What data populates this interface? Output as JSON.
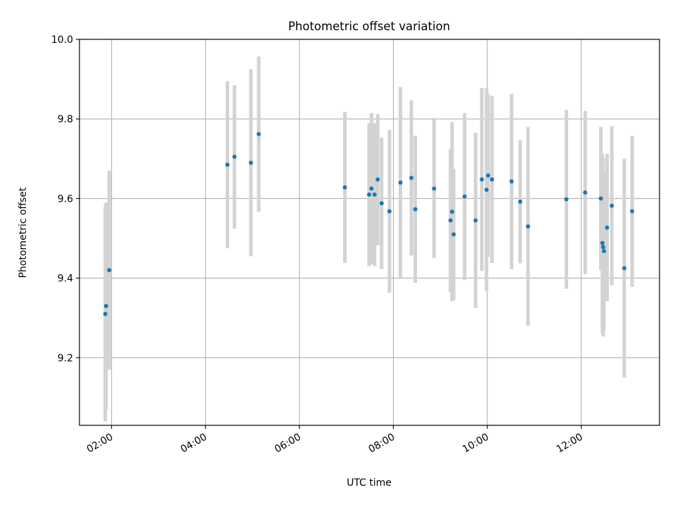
{
  "chart_data": {
    "type": "scatter",
    "title": "Photometric offset variation",
    "xlabel": "UTC time",
    "ylabel": "Photometric offset",
    "x_is_time": true,
    "xlim": [
      "01:19",
      "13:40"
    ],
    "ylim": [
      9.03,
      10.0
    ],
    "x_ticks": [
      "02:00",
      "04:00",
      "06:00",
      "08:00",
      "10:00",
      "12:00"
    ],
    "y_ticks": [
      "9.2",
      "9.4",
      "9.6",
      "9.8",
      "10.0"
    ],
    "grid": true,
    "legend": "none",
    "colors": {
      "point": "#1f77b4",
      "errorbar": "#d3d3d3",
      "grid": "#b0b0b0",
      "axes": "#000000"
    },
    "series": [
      {
        "points": [
          {
            "x": "01:53",
            "y": 9.33,
            "err": 0.26
          },
          {
            "x": "01:52",
            "y": 9.31,
            "err": 0.27
          },
          {
            "x": "01:57",
            "y": 9.42,
            "err": 0.25
          },
          {
            "x": "04:28",
            "y": 9.685,
            "err": 0.21
          },
          {
            "x": "04:37",
            "y": 9.705,
            "err": 0.18
          },
          {
            "x": "04:58",
            "y": 9.69,
            "err": 0.235
          },
          {
            "x": "05:08",
            "y": 9.762,
            "err": 0.195
          },
          {
            "x": "06:58",
            "y": 9.628,
            "err": 0.19
          },
          {
            "x": "07:29",
            "y": 9.61,
            "err": 0.18
          },
          {
            "x": "07:32",
            "y": 9.625,
            "err": 0.19
          },
          {
            "x": "07:36",
            "y": 9.61,
            "err": 0.18
          },
          {
            "x": "07:40",
            "y": 9.648,
            "err": 0.165
          },
          {
            "x": "07:45",
            "y": 9.588,
            "err": 0.165
          },
          {
            "x": "07:55",
            "y": 9.568,
            "err": 0.205
          },
          {
            "x": "08:09",
            "y": 9.64,
            "err": 0.24
          },
          {
            "x": "08:23",
            "y": 9.652,
            "err": 0.195
          },
          {
            "x": "08:28",
            "y": 9.573,
            "err": 0.185
          },
          {
            "x": "08:52",
            "y": 9.625,
            "err": 0.175
          },
          {
            "x": "09:13",
            "y": 9.545,
            "err": 0.18
          },
          {
            "x": "09:15",
            "y": 9.567,
            "err": 0.225
          },
          {
            "x": "09:17",
            "y": 9.51,
            "err": 0.165
          },
          {
            "x": "09:31",
            "y": 9.605,
            "err": 0.21
          },
          {
            "x": "09:45",
            "y": 9.545,
            "err": 0.22
          },
          {
            "x": "09:53",
            "y": 9.648,
            "err": 0.23
          },
          {
            "x": "09:59",
            "y": 9.622,
            "err": 0.255
          },
          {
            "x": "10:01",
            "y": 9.658,
            "err": 0.205
          },
          {
            "x": "10:06",
            "y": 9.648,
            "err": 0.21
          },
          {
            "x": "10:31",
            "y": 9.643,
            "err": 0.22
          },
          {
            "x": "10:42",
            "y": 9.592,
            "err": 0.155
          },
          {
            "x": "10:52",
            "y": 9.53,
            "err": 0.25
          },
          {
            "x": "11:41",
            "y": 9.598,
            "err": 0.225
          },
          {
            "x": "12:05",
            "y": 9.615,
            "err": 0.205
          },
          {
            "x": "12:25",
            "y": 9.6,
            "err": 0.18
          },
          {
            "x": "12:27",
            "y": 9.488,
            "err": 0.225
          },
          {
            "x": "12:28",
            "y": 9.478,
            "err": 0.225
          },
          {
            "x": "12:29",
            "y": 9.468,
            "err": 0.2
          },
          {
            "x": "12:33",
            "y": 9.527,
            "err": 0.185
          },
          {
            "x": "12:39",
            "y": 9.582,
            "err": 0.2
          },
          {
            "x": "12:55",
            "y": 9.425,
            "err": 0.275
          },
          {
            "x": "13:05",
            "y": 9.568,
            "err": 0.19
          }
        ]
      }
    ]
  }
}
